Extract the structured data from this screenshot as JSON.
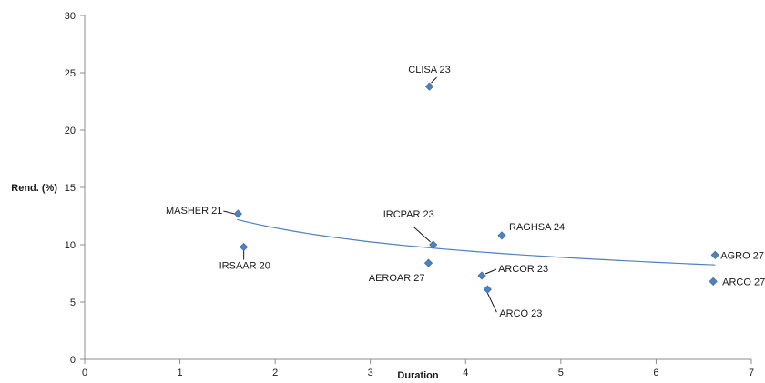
{
  "chart_data": {
    "type": "scatter",
    "xlabel": "Duration",
    "ylabel": "Rend. (%)",
    "xlim": [
      0,
      7
    ],
    "ylim": [
      0,
      30
    ],
    "x_ticks": [
      "0",
      "1",
      "2",
      "3",
      "4",
      "5",
      "6",
      "7"
    ],
    "y_ticks": [
      "0",
      "5",
      "10",
      "15",
      "20",
      "25",
      "30"
    ],
    "grid": false,
    "legend": "none",
    "marker": "diamond",
    "marker_color": "#4f81bd",
    "trendline": {
      "type": "power",
      "color": "#4f81bd",
      "x_range": [
        1.6,
        6.62
      ]
    },
    "series": [
      {
        "points": [
          {
            "x": 1.61,
            "y": 12.7,
            "label": "MASHER 21"
          },
          {
            "x": 1.67,
            "y": 9.8,
            "label": "IRSAAR 20"
          },
          {
            "x": 3.62,
            "y": 23.8,
            "label": "CLISA 23"
          },
          {
            "x": 3.66,
            "y": 10.0,
            "label": "IRCPAR 23"
          },
          {
            "x": 3.61,
            "y": 8.4,
            "label": "AEROAR 27"
          },
          {
            "x": 4.17,
            "y": 7.3,
            "label": "ARCOR 23"
          },
          {
            "x": 4.23,
            "y": 6.1,
            "label": "ARCO 23"
          },
          {
            "x": 4.38,
            "y": 10.8,
            "label": "RAGHSA 24"
          },
          {
            "x": 6.62,
            "y": 9.1,
            "label": "AGRO 27"
          },
          {
            "x": 6.6,
            "y": 6.8,
            "label": "ARCO 27"
          }
        ]
      }
    ]
  }
}
